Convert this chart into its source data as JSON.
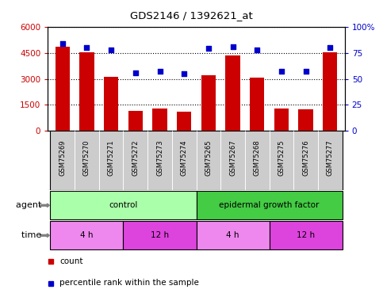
{
  "title": "GDS2146 / 1392621_at",
  "samples": [
    "GSM75269",
    "GSM75270",
    "GSM75271",
    "GSM75272",
    "GSM75273",
    "GSM75274",
    "GSM75265",
    "GSM75267",
    "GSM75268",
    "GSM75275",
    "GSM75276",
    "GSM75277"
  ],
  "counts": [
    4850,
    4550,
    3100,
    1150,
    1300,
    1100,
    3200,
    4350,
    3050,
    1280,
    1230,
    4550
  ],
  "percentiles": [
    84,
    80,
    78,
    56,
    57,
    55,
    79,
    81,
    78,
    57,
    57,
    80
  ],
  "ylim_left": [
    0,
    6000
  ],
  "ylim_right": [
    0,
    100
  ],
  "yticks_left": [
    0,
    1500,
    3000,
    4500,
    6000
  ],
  "yticks_right": [
    0,
    25,
    50,
    75,
    100
  ],
  "yticklabels_left": [
    "0",
    "1500",
    "3000",
    "4500",
    "6000"
  ],
  "yticklabels_right": [
    "0",
    "25",
    "50",
    "75",
    "100%"
  ],
  "bar_color": "#cc0000",
  "dot_color": "#0000cc",
  "agent_label": "agent",
  "time_label": "time",
  "agent_groups": [
    {
      "label": "control",
      "start": 0,
      "end": 6,
      "color": "#aaffaa"
    },
    {
      "label": "epidermal growth factor",
      "start": 6,
      "end": 12,
      "color": "#44cc44"
    }
  ],
  "time_groups": [
    {
      "label": "4 h",
      "start": 0,
      "end": 3,
      "color": "#ee88ee"
    },
    {
      "label": "12 h",
      "start": 3,
      "end": 6,
      "color": "#dd44dd"
    },
    {
      "label": "4 h",
      "start": 6,
      "end": 9,
      "color": "#ee88ee"
    },
    {
      "label": "12 h",
      "start": 9,
      "end": 12,
      "color": "#dd44dd"
    }
  ],
  "legend_count_label": "count",
  "legend_pct_label": "percentile rank within the sample",
  "bg_color": "#ffffff",
  "plot_bg_color": "#ffffff",
  "grid_color": "#000000",
  "tick_label_color_left": "#cc0000",
  "tick_label_color_right": "#0000cc",
  "sample_bg_color": "#cccccc",
  "arrow_color": "#666666"
}
